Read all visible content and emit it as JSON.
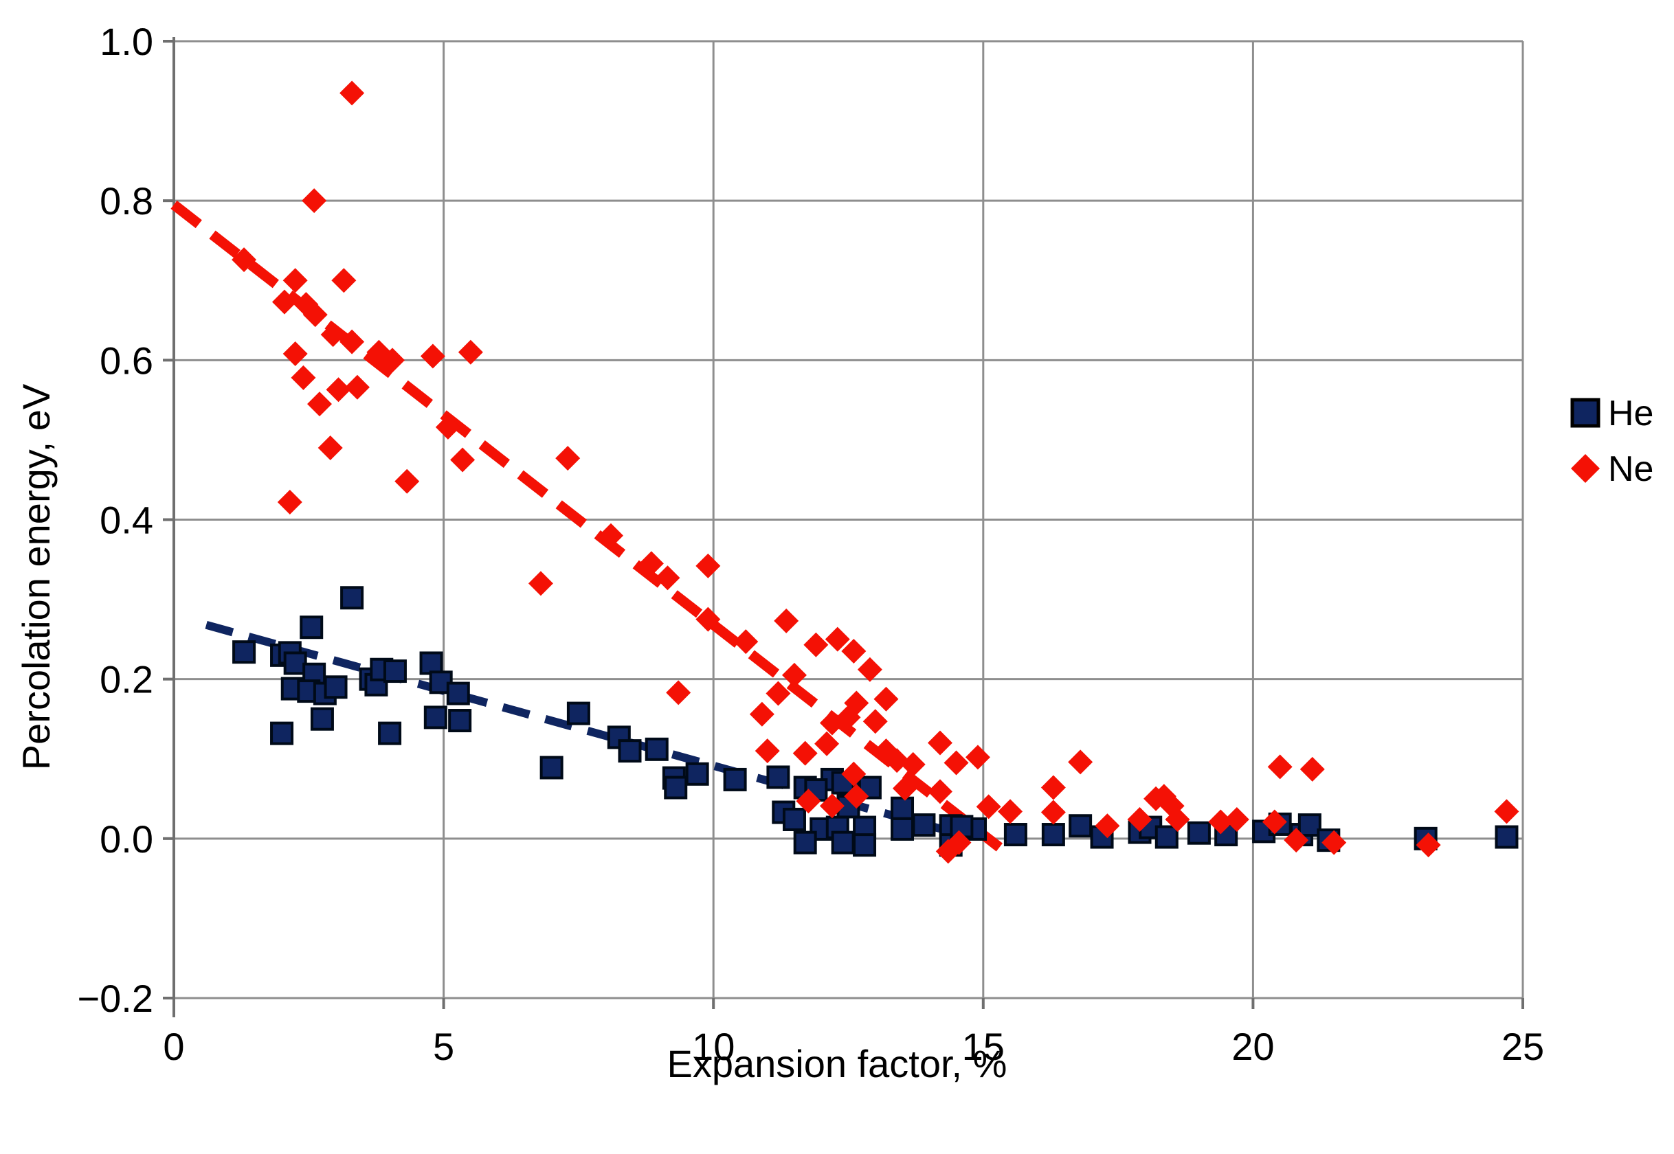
{
  "chart_data": {
    "type": "scatter",
    "title": "",
    "xlabel": "Expansion factor, %",
    "ylabel": "Percolation energy, eV",
    "xlim": [
      0,
      25
    ],
    "ylim": [
      -0.2,
      1.0
    ],
    "grid": true,
    "legend_position": "right",
    "x_ticks": [
      {
        "value": 0,
        "label": "0"
      },
      {
        "value": 5,
        "label": "5"
      },
      {
        "value": 10,
        "label": "10"
      },
      {
        "value": 15,
        "label": "15"
      },
      {
        "value": 20,
        "label": "20"
      },
      {
        "value": 25,
        "label": "25"
      }
    ],
    "y_ticks": [
      {
        "value": 1.0,
        "label": "1.0"
      },
      {
        "value": 0.8,
        "label": "0.8"
      },
      {
        "value": 0.6,
        "label": "0.6"
      },
      {
        "value": 0.4,
        "label": "0.4"
      },
      {
        "value": 0.2,
        "label": "0.2"
      },
      {
        "value": 0.0,
        "label": "0.0"
      },
      {
        "value": -0.2,
        "label": "−0.2"
      }
    ],
    "series": [
      {
        "name": "He",
        "marker": "square",
        "color": "#0f2560",
        "edge_color": "#000a18",
        "trendline": {
          "x1": 0.6,
          "y1": 0.268,
          "x2": 14.6,
          "y2": 0.005,
          "style": "dashed"
        },
        "points": [
          [
            1.3,
            0.234
          ],
          [
            2.0,
            0.23
          ],
          [
            2.15,
            0.233
          ],
          [
            2.25,
            0.22
          ],
          [
            2.55,
            0.265
          ],
          [
            2.6,
            0.206
          ],
          [
            2.2,
            0.188
          ],
          [
            2.5,
            0.185
          ],
          [
            2.8,
            0.182
          ],
          [
            3.0,
            0.19
          ],
          [
            3.3,
            0.302
          ],
          [
            3.65,
            0.2
          ],
          [
            3.75,
            0.193
          ],
          [
            3.85,
            0.212
          ],
          [
            4.1,
            0.21
          ],
          [
            4.77,
            0.22
          ],
          [
            4.95,
            0.196
          ],
          [
            5.27,
            0.182
          ],
          [
            2.75,
            0.15
          ],
          [
            2.0,
            0.132
          ],
          [
            4.0,
            0.132
          ],
          [
            4.85,
            0.152
          ],
          [
            5.3,
            0.148
          ],
          [
            7.5,
            0.157
          ],
          [
            7.0,
            0.089
          ],
          [
            8.25,
            0.127
          ],
          [
            8.45,
            0.11
          ],
          [
            8.95,
            0.112
          ],
          [
            9.27,
            0.076
          ],
          [
            9.7,
            0.081
          ],
          [
            9.3,
            0.064
          ],
          [
            10.4,
            0.074
          ],
          [
            11.2,
            0.077
          ],
          [
            11.7,
            0.064
          ],
          [
            12.2,
            0.074
          ],
          [
            12.5,
            0.067
          ],
          [
            11.3,
            0.033
          ],
          [
            11.5,
            0.024
          ],
          [
            11.9,
            0.061
          ],
          [
            12.0,
            0.012
          ],
          [
            12.3,
            0.014
          ],
          [
            12.4,
            0.07
          ],
          [
            12.5,
            0.04
          ],
          [
            12.8,
            0.014
          ],
          [
            12.9,
            0.064
          ],
          [
            12.4,
            -0.005
          ],
          [
            11.7,
            -0.005
          ],
          [
            12.8,
            -0.008
          ],
          [
            13.5,
            0.038
          ],
          [
            13.5,
            0.012
          ],
          [
            13.9,
            0.017
          ],
          [
            14.4,
            0.016
          ],
          [
            14.4,
            -0.008
          ],
          [
            14.85,
            0.012
          ],
          [
            14.6,
            0.015
          ],
          [
            15.6,
            0.005
          ],
          [
            16.3,
            0.005
          ],
          [
            16.8,
            0.016
          ],
          [
            17.2,
            0.002
          ],
          [
            17.9,
            0.008
          ],
          [
            18.1,
            0.014
          ],
          [
            18.4,
            0.002
          ],
          [
            19.0,
            0.007
          ],
          [
            19.5,
            0.005
          ],
          [
            20.2,
            0.009
          ],
          [
            20.5,
            0.018
          ],
          [
            20.9,
            0.005
          ],
          [
            21.05,
            0.017
          ],
          [
            21.4,
            -0.002
          ],
          [
            23.2,
            0.0
          ],
          [
            24.7,
            0.002
          ]
        ]
      },
      {
        "name": "Ne",
        "marker": "diamond",
        "color": "#f41105",
        "edge_color": "#f41105",
        "trendline": {
          "x1": 0.0,
          "y1": 0.795,
          "x2": 15.3,
          "y2": -0.011,
          "style": "dashed"
        },
        "points": [
          [
            3.3,
            0.935
          ],
          [
            2.6,
            0.8
          ],
          [
            1.3,
            0.726
          ],
          [
            2.25,
            0.7
          ],
          [
            3.15,
            0.7
          ],
          [
            2.05,
            0.673
          ],
          [
            2.45,
            0.67
          ],
          [
            2.62,
            0.657
          ],
          [
            2.95,
            0.632
          ],
          [
            3.3,
            0.623
          ],
          [
            2.25,
            0.608
          ],
          [
            3.8,
            0.61
          ],
          [
            4.05,
            0.6
          ],
          [
            4.8,
            0.605
          ],
          [
            5.5,
            0.61
          ],
          [
            2.4,
            0.578
          ],
          [
            3.05,
            0.563
          ],
          [
            3.4,
            0.566
          ],
          [
            2.7,
            0.545
          ],
          [
            5.08,
            0.516
          ],
          [
            5.35,
            0.475
          ],
          [
            2.9,
            0.49
          ],
          [
            4.32,
            0.448
          ],
          [
            2.15,
            0.422
          ],
          [
            7.3,
            0.477
          ],
          [
            6.8,
            0.32
          ],
          [
            8.1,
            0.38
          ],
          [
            8.85,
            0.345
          ],
          [
            9.15,
            0.327
          ],
          [
            9.9,
            0.342
          ],
          [
            9.9,
            0.275
          ],
          [
            10.6,
            0.247
          ],
          [
            11.35,
            0.273
          ],
          [
            11.9,
            0.243
          ],
          [
            12.3,
            0.25
          ],
          [
            12.6,
            0.235
          ],
          [
            12.9,
            0.212
          ],
          [
            9.35,
            0.183
          ],
          [
            11.2,
            0.182
          ],
          [
            11.5,
            0.205
          ],
          [
            10.9,
            0.156
          ],
          [
            11.0,
            0.11
          ],
          [
            11.7,
            0.107
          ],
          [
            12.1,
            0.119
          ],
          [
            12.2,
            0.145
          ],
          [
            12.5,
            0.152
          ],
          [
            12.65,
            0.17
          ],
          [
            13.0,
            0.147
          ],
          [
            13.2,
            0.175
          ],
          [
            13.2,
            0.11
          ],
          [
            13.4,
            0.098
          ],
          [
            13.7,
            0.093
          ],
          [
            12.6,
            0.081
          ],
          [
            12.2,
            0.041
          ],
          [
            12.65,
            0.053
          ],
          [
            11.76,
            0.047
          ],
          [
            13.55,
            0.063
          ],
          [
            14.2,
            0.12
          ],
          [
            14.2,
            0.059
          ],
          [
            14.9,
            0.102
          ],
          [
            14.5,
            0.095
          ],
          [
            15.1,
            0.04
          ],
          [
            15.5,
            0.034
          ],
          [
            16.3,
            0.064
          ],
          [
            16.8,
            0.096
          ],
          [
            16.3,
            0.033
          ],
          [
            17.3,
            0.016
          ],
          [
            17.9,
            0.024
          ],
          [
            18.2,
            0.05
          ],
          [
            18.35,
            0.053
          ],
          [
            18.5,
            0.041
          ],
          [
            18.6,
            0.024
          ],
          [
            19.4,
            0.021
          ],
          [
            19.7,
            0.024
          ],
          [
            20.4,
            0.021
          ],
          [
            20.5,
            0.09
          ],
          [
            20.8,
            -0.002
          ],
          [
            21.1,
            0.087
          ],
          [
            21.5,
            -0.005
          ],
          [
            23.25,
            -0.008
          ],
          [
            24.7,
            0.034
          ],
          [
            14.35,
            -0.016
          ],
          [
            14.55,
            -0.005
          ]
        ]
      }
    ]
  },
  "legend": {
    "items": [
      {
        "label": "He",
        "series": "He"
      },
      {
        "label": "Ne",
        "series": "Ne"
      }
    ]
  },
  "colors": {
    "background": "#ffffff",
    "gridline": "#8e8e8e",
    "axis": "#6f6f6f",
    "text": "#000000",
    "he": "#0f2560",
    "ne": "#f41105"
  }
}
